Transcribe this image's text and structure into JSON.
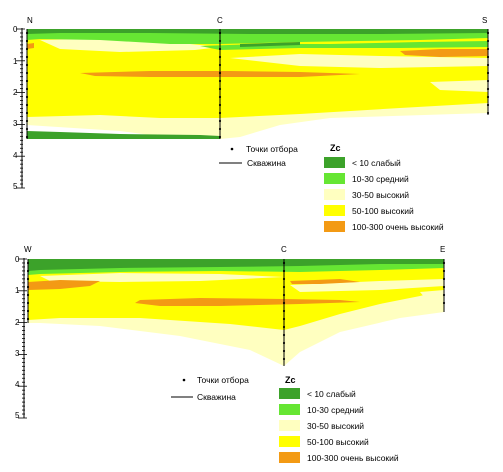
{
  "colors": {
    "weak": "#3ca22a",
    "medium": "#66e633",
    "high_light": "#ffffc0",
    "high": "#ffff00",
    "very_high": "#f39a14"
  },
  "section_top": {
    "points": {
      "left": "N",
      "middle": "C",
      "right": "S"
    },
    "depth_ticks": [
      "0",
      "1",
      "2",
      "3",
      "4",
      "5"
    ],
    "legend_sampling": "Точки отбора",
    "legend_well": "Скважина",
    "legend_title": "Zc",
    "classes": [
      {
        "label": "< 10 слабый",
        "color_key": "weak"
      },
      {
        "label": "10-30 средний",
        "color_key": "medium"
      },
      {
        "label": "30-50 высокий",
        "color_key": "high_light"
      },
      {
        "label": "50-100 высокий",
        "color_key": "high"
      },
      {
        "label": "100-300 очень высокий",
        "color_key": "very_high"
      }
    ]
  },
  "section_bottom": {
    "points": {
      "left": "W",
      "middle": "C",
      "right": "E"
    },
    "depth_ticks": [
      "0",
      "1",
      "2",
      "3",
      "4",
      "5"
    ],
    "legend_sampling": "Точки отбора",
    "legend_well": "Скважина",
    "legend_title": "Zc",
    "classes": [
      {
        "label": "< 10 слабый",
        "color_key": "weak"
      },
      {
        "label": "10-30 средний",
        "color_key": "medium"
      },
      {
        "label": "30-50 высокий",
        "color_key": "high_light"
      },
      {
        "label": "50-100 высокий",
        "color_key": "high"
      },
      {
        "label": "100-300 очень высокий",
        "color_key": "very_high"
      }
    ]
  }
}
